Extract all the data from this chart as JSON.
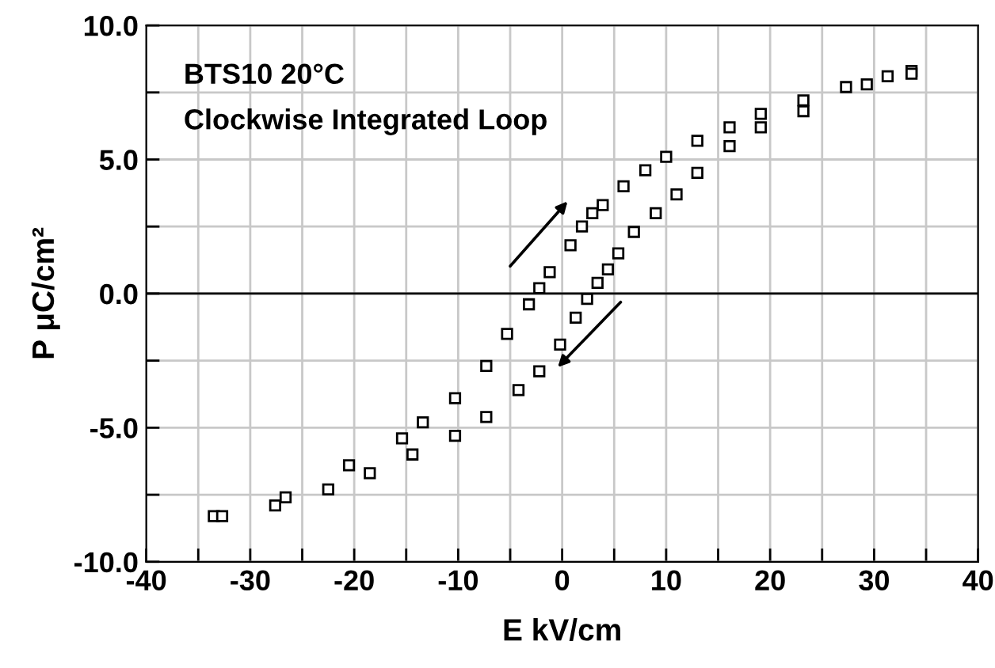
{
  "chart_data": {
    "type": "scatter",
    "xlabel": "E kV/cm",
    "ylabel": "P μC/cm²",
    "annotations": [
      "BTS10 20°C",
      "Clockwise Integrated Loop"
    ],
    "series": [
      {
        "color": "#000000",
        "x": [
          -33.5,
          -26.6,
          -20.5,
          -15.4,
          -13.4,
          -10.3,
          -7.3,
          -5.3,
          -3.2,
          -2.2,
          -1.2,
          0.8,
          1.9,
          2.9,
          3.9,
          5.9,
          8.0,
          10.0,
          13.0,
          16.1,
          19.1,
          23.2,
          27.3,
          31.3,
          33.6
        ],
        "values": [
          -8.3,
          -7.6,
          -6.4,
          -5.4,
          -4.8,
          -3.9,
          -2.7,
          -1.5,
          -0.4,
          0.2,
          0.8,
          1.8,
          2.5,
          3.0,
          3.3,
          4.0,
          4.6,
          5.1,
          5.7,
          6.2,
          6.7,
          7.2,
          7.7,
          8.1,
          8.3
        ]
      },
      {
        "color": "#000000",
        "x": [
          33.6,
          29.3,
          23.2,
          19.1,
          16.1,
          13.0,
          11.0,
          9.0,
          6.9,
          5.4,
          4.4,
          3.4,
          2.4,
          1.3,
          -0.2,
          -2.2,
          -4.2,
          -7.3,
          -10.3,
          -14.4,
          -18.5,
          -22.5,
          -27.6,
          -32.7
        ],
        "values": [
          8.2,
          7.8,
          6.8,
          6.2,
          5.5,
          4.5,
          3.7,
          3.0,
          2.3,
          1.5,
          0.9,
          0.4,
          -0.2,
          -0.9,
          -1.9,
          -2.9,
          -3.6,
          -4.6,
          -5.3,
          -6.0,
          -6.7,
          -7.3,
          -7.9,
          -8.3
        ]
      }
    ],
    "marker": "square",
    "grid": true,
    "xlim": [
      -40,
      40
    ],
    "xticks": [
      -40,
      {
        "value": -35,
        "label": null
      },
      -30,
      {
        "value": -25,
        "label": null
      },
      -20,
      {
        "value": -15,
        "label": null
      },
      -10,
      {
        "value": -5,
        "label": null
      },
      0,
      {
        "value": 5,
        "label": null
      },
      10,
      {
        "value": 15,
        "label": null
      },
      20,
      {
        "value": 25,
        "label": null
      },
      30,
      {
        "value": 35,
        "label": null
      },
      40
    ],
    "ylim": [
      -10,
      10
    ],
    "yticks": [
      {
        "value": -10,
        "label": "-10.0"
      },
      {
        "value": -7.5,
        "label": null
      },
      {
        "value": -5,
        "label": "-5.0"
      },
      {
        "value": -2.5,
        "label": null
      },
      {
        "value": 0,
        "label": "0.0"
      },
      {
        "value": 2.5,
        "label": null
      },
      {
        "value": 5,
        "label": "5.0"
      },
      {
        "value": 7.5,
        "label": null
      },
      {
        "value": 10,
        "label": "10.0"
      }
    ],
    "ref_lines": [
      {
        "axis": "y",
        "value": 0,
        "color": "#000000",
        "line_style": "solid"
      }
    ]
  }
}
